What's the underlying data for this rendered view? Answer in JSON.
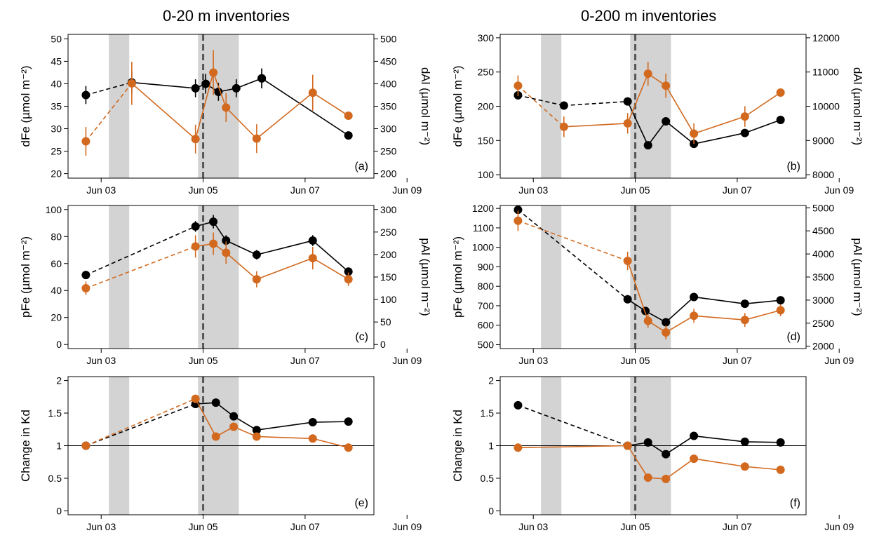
{
  "titles": {
    "left": "0-20 m inventories",
    "right": "0-200 m inventories"
  },
  "colors": {
    "fe": "#000000",
    "al": "#d2691e",
    "shade": "#d3d3d3",
    "vline": "#555555"
  },
  "chart_data": [
    {
      "id": "a",
      "type": "line",
      "panel_label": "(a)",
      "ylabel": "dFe (µmol m⁻²)",
      "y2label": "dAl (µmol m⁻²)",
      "ylim": [
        19,
        51
      ],
      "yticks": [
        20,
        25,
        30,
        35,
        40,
        45,
        50
      ],
      "y2lim": [
        190,
        510
      ],
      "y2ticks": [
        200,
        250,
        300,
        350,
        400,
        450,
        500
      ],
      "xticks": [
        "Jun 03",
        "Jun 05",
        "Jun 07",
        "Jun 09"
      ],
      "series": [
        {
          "axis": "left",
          "color": "black",
          "dashed_until": 1,
          "x": [
            2.7,
            3.6,
            4.85,
            5.05,
            5.3,
            5.65,
            6.15
          ],
          "y": [
            37.5,
            40.3,
            39,
            40,
            38.2,
            39,
            41.2
          ],
          "err": [
            2,
            2.5,
            2,
            2.2,
            2,
            2,
            2.2
          ]
        },
        {
          "axis": "left",
          "color": "black",
          "dashed_until": 0,
          "x": [
            6.15,
            7.85
          ],
          "y": [
            41.2,
            28.5
          ],
          "err": [
            2.2,
            0
          ]
        },
        {
          "axis": "right",
          "color": "orange",
          "dashed_until": 1,
          "x": [
            2.7,
            3.6,
            4.85,
            5.2,
            5.45,
            6.05,
            7.15,
            7.85
          ],
          "y": [
            272,
            401,
            277,
            425,
            347,
            278,
            380,
            329
          ],
          "err": [
            32,
            48,
            32,
            50,
            32,
            32,
            40,
            0
          ]
        }
      ]
    },
    {
      "id": "b",
      "type": "line",
      "panel_label": "(b)",
      "ylabel": "dFe (µmol m⁻²)",
      "y2label": "dAl (µmol m⁻²)",
      "ylim": [
        95,
        305
      ],
      "yticks": [
        100,
        150,
        200,
        250,
        300
      ],
      "y2lim": [
        7900,
        12100
      ],
      "y2ticks": [
        8000,
        9000,
        10000,
        11000,
        12000
      ],
      "xticks": [
        "Jun 03",
        "Jun 05",
        "Jun 07",
        "Jun 09"
      ],
      "series": [
        {
          "axis": "left",
          "color": "black",
          "dashed_until": 2,
          "x": [
            2.7,
            3.6,
            4.85,
            5.25,
            5.6,
            6.15,
            7.15,
            7.85
          ],
          "y": [
            216,
            201,
            207,
            143,
            178,
            145,
            161,
            180
          ],
          "err": [
            0,
            0,
            0,
            0,
            0,
            0,
            0,
            0
          ]
        },
        {
          "axis": "right",
          "color": "orange",
          "dashed_until": 1,
          "x": [
            2.7,
            3.6,
            4.85,
            5.25,
            5.6,
            6.15,
            7.15,
            7.85
          ],
          "y": [
            10600,
            9400,
            9500,
            10950,
            10600,
            9200,
            9700,
            10400
          ],
          "err": [
            300,
            300,
            300,
            350,
            350,
            300,
            300,
            0
          ]
        }
      ]
    },
    {
      "id": "c",
      "type": "line",
      "panel_label": "(c)",
      "ylabel": "pFe (µmol m⁻²)",
      "y2label": "pAl (µmol m⁻²)",
      "ylim": [
        -3,
        103
      ],
      "yticks": [
        0,
        20,
        40,
        60,
        80,
        100
      ],
      "y2lim": [
        -9,
        309
      ],
      "y2ticks": [
        0,
        50,
        100,
        150,
        200,
        250,
        300
      ],
      "xticks": [
        "Jun 03",
        "Jun 05",
        "Jun 07",
        "Jun 09"
      ],
      "series": [
        {
          "axis": "left",
          "color": "black",
          "dashed_until": 1,
          "x": [
            2.7,
            4.85,
            5.2,
            5.45,
            6.05,
            7.15,
            7.85
          ],
          "y": [
            51.5,
            87.5,
            91,
            77,
            66.5,
            77,
            54
          ],
          "err": [
            0,
            4,
            5,
            4,
            3.5,
            4,
            0
          ]
        },
        {
          "axis": "right",
          "color": "orange",
          "dashed_until": 1,
          "x": [
            2.7,
            4.85,
            5.2,
            5.45,
            6.05,
            7.15,
            7.85
          ],
          "y": [
            125,
            218,
            224,
            204,
            145,
            192,
            145
          ],
          "err": [
            15,
            25,
            25,
            25,
            18,
            25,
            15
          ]
        }
      ]
    },
    {
      "id": "d",
      "type": "line",
      "panel_label": "(d)",
      "ylabel": "pFe (µmol m⁻²)",
      "y2label": "pAl (µmol m⁻²)",
      "ylim": [
        480,
        1215
      ],
      "yticks": [
        500,
        600,
        700,
        800,
        900,
        1000,
        1100,
        1200
      ],
      "y2lim": [
        1950,
        5050
      ],
      "y2ticks": [
        2000,
        2500,
        3000,
        3500,
        4000,
        4500,
        5000
      ],
      "xticks": [
        "Jun 03",
        "Jun 05",
        "Jun 07",
        "Jun 09"
      ],
      "series": [
        {
          "axis": "left",
          "color": "black",
          "dashed_until": 1,
          "x": [
            2.7,
            4.85,
            5.2,
            5.6,
            6.15,
            7.15,
            7.85
          ],
          "y": [
            1193,
            733,
            673,
            615,
            745,
            710,
            728
          ],
          "err": [
            0,
            0,
            0,
            0,
            0,
            0,
            0
          ]
        },
        {
          "axis": "right",
          "color": "orange",
          "dashed_until": 1,
          "x": [
            2.7,
            4.85,
            5.25,
            5.6,
            6.15,
            7.15,
            7.85
          ],
          "y": [
            4720,
            3850,
            2550,
            2300,
            2660,
            2570,
            2780
          ],
          "err": [
            220,
            200,
            150,
            150,
            150,
            150,
            130
          ]
        }
      ]
    },
    {
      "id": "e",
      "type": "line",
      "panel_label": "(e)",
      "ylabel": "Change in Kd",
      "ylim": [
        -0.06,
        2.06
      ],
      "yticks": [
        0.0,
        0.5,
        1.0,
        1.5,
        2.0
      ],
      "xticks": [
        "Jun 03",
        "Jun 05",
        "Jun 07",
        "Jun 09"
      ],
      "hline": 1.0,
      "series": [
        {
          "axis": "left",
          "color": "black",
          "dashed_until": 1,
          "x": [
            2.7,
            4.85,
            5.25,
            5.6,
            6.05,
            7.15,
            7.85
          ],
          "y": [
            1.0,
            1.64,
            1.66,
            1.45,
            1.24,
            1.36,
            1.37
          ],
          "err": [
            0,
            0,
            0,
            0,
            0,
            0,
            0
          ]
        },
        {
          "axis": "left",
          "color": "orange",
          "dashed_until": 1,
          "x": [
            2.7,
            4.85,
            5.25,
            5.6,
            6.05,
            7.15,
            7.85
          ],
          "y": [
            1.0,
            1.72,
            1.14,
            1.29,
            1.14,
            1.11,
            0.97
          ],
          "err": [
            0,
            0,
            0,
            0,
            0,
            0,
            0
          ]
        }
      ]
    },
    {
      "id": "f",
      "type": "line",
      "panel_label": "(f)",
      "ylabel": "Change in Kd",
      "ylim": [
        -0.06,
        2.06
      ],
      "yticks": [
        0.0,
        0.5,
        1.0,
        1.5,
        2.0
      ],
      "xticks": [
        "Jun 03",
        "Jun 05",
        "Jun 07",
        "Jun 09"
      ],
      "hline": 1.0,
      "series": [
        {
          "axis": "left",
          "color": "black",
          "dashed_until": 1,
          "x": [
            2.7,
            4.85,
            5.25,
            5.6,
            6.15,
            7.15,
            7.85
          ],
          "y": [
            1.62,
            1.0,
            1.05,
            0.87,
            1.15,
            1.06,
            1.05
          ],
          "err": [
            0,
            0,
            0,
            0,
            0,
            0,
            0
          ]
        },
        {
          "axis": "left",
          "color": "orange",
          "dashed_until": 0,
          "x": [
            2.7,
            4.85,
            5.25,
            5.6,
            6.15,
            7.15,
            7.85
          ],
          "y": [
            0.97,
            1.0,
            0.51,
            0.49,
            0.8,
            0.68,
            0.63
          ],
          "err": [
            0,
            0,
            0,
            0,
            0,
            0,
            0
          ]
        }
      ]
    }
  ]
}
